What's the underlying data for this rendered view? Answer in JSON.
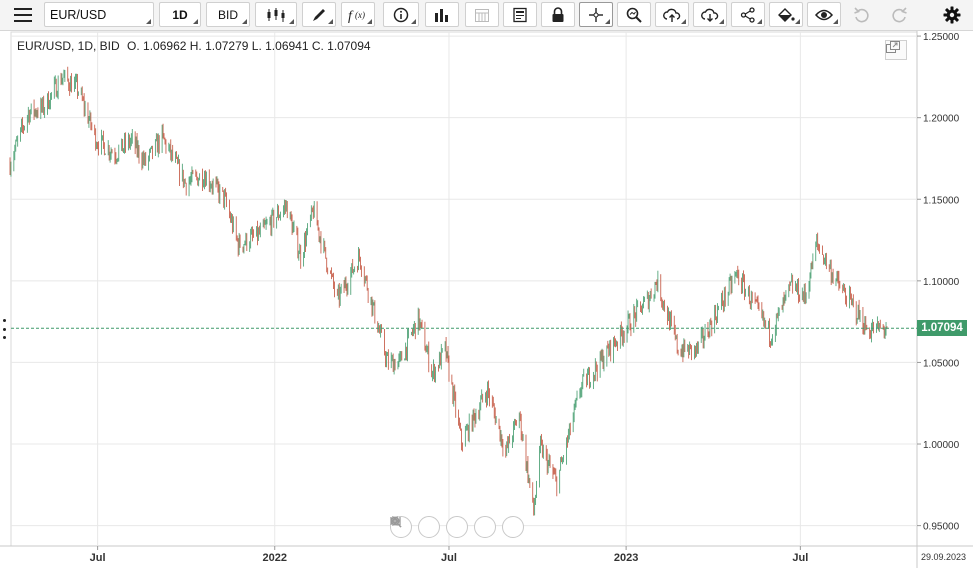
{
  "toolbar": {
    "symbol": "EUR/USD",
    "interval": "1D",
    "price_type": "BID",
    "icons": [
      "menu-icon",
      "candles-icon",
      "pencil-icon",
      "function-icon",
      "info-icon",
      "bars-icon",
      "calendar-icon",
      "report-icon",
      "lock-icon",
      "crosshair-icon",
      "zoom-icon",
      "cloud-upload-icon",
      "cloud-download-icon",
      "share-icon",
      "paint-icon",
      "eye-icon",
      "undo-icon",
      "redo-icon",
      "gear-icon"
    ]
  },
  "legend": {
    "instrument": "EUR/USD, 1D, BID",
    "ohlc": "O. 1.06962 H. 1.07279 L. 1.06941 C. 1.07094"
  },
  "colors": {
    "up": "#3f9a6a",
    "down": "#c2503a",
    "grid": "#e8e8e8",
    "last_price": "#3f9a6a"
  },
  "chart_data": {
    "type": "candlestick",
    "last_price": "1.07094",
    "y_axis": {
      "ticks": [
        "1.25000",
        "1.20000",
        "1.15000",
        "1.10000",
        "1.05000",
        "1.00000",
        "0.95000"
      ],
      "range": [
        0.9375,
        1.2525
      ]
    },
    "x_axis": {
      "ticks": [
        "Jul",
        "2022",
        "Jul",
        "2023",
        "Jul"
      ],
      "end_date": "29.09.2023"
    },
    "range": {
      "start": "2021-04-01",
      "end": "2023-09-29"
    },
    "path": [
      [
        "2021-04-01",
        1.172
      ],
      [
        "2021-04-20",
        1.203
      ],
      [
        "2021-05-06",
        1.206
      ],
      [
        "2021-05-25",
        1.225
      ],
      [
        "2021-06-10",
        1.218
      ],
      [
        "2021-06-30",
        1.186
      ],
      [
        "2021-07-20",
        1.178
      ],
      [
        "2021-08-05",
        1.186
      ],
      [
        "2021-08-20",
        1.172
      ],
      [
        "2021-09-06",
        1.188
      ],
      [
        "2021-09-30",
        1.16
      ],
      [
        "2021-10-20",
        1.165
      ],
      [
        "2021-11-10",
        1.15
      ],
      [
        "2021-11-24",
        1.122
      ],
      [
        "2021-12-15",
        1.128
      ],
      [
        "2022-01-13",
        1.146
      ],
      [
        "2022-01-28",
        1.115
      ],
      [
        "2022-02-10",
        1.143
      ],
      [
        "2022-03-07",
        1.088
      ],
      [
        "2022-03-30",
        1.115
      ],
      [
        "2022-04-28",
        1.05
      ],
      [
        "2022-05-11",
        1.05
      ],
      [
        "2022-05-30",
        1.077
      ],
      [
        "2022-06-14",
        1.043
      ],
      [
        "2022-06-27",
        1.058
      ],
      [
        "2022-07-14",
        1.001
      ],
      [
        "2022-08-10",
        1.033
      ],
      [
        "2022-08-29",
        0.995
      ],
      [
        "2022-09-12",
        1.018
      ],
      [
        "2022-09-27",
        0.958
      ],
      [
        "2022-10-04",
        0.998
      ],
      [
        "2022-10-21",
        0.976
      ],
      [
        "2022-11-15",
        1.035
      ],
      [
        "2022-12-01",
        1.047
      ],
      [
        "2022-12-30",
        1.07
      ],
      [
        "2023-01-25",
        1.09
      ],
      [
        "2023-02-02",
        1.1
      ],
      [
        "2023-02-24",
        1.058
      ],
      [
        "2023-03-15",
        1.057
      ],
      [
        "2023-04-26",
        1.104
      ],
      [
        "2023-05-31",
        1.067
      ],
      [
        "2023-06-22",
        1.097
      ],
      [
        "2023-07-06",
        1.09
      ],
      [
        "2023-07-18",
        1.123
      ],
      [
        "2023-08-10",
        1.097
      ],
      [
        "2023-09-01",
        1.078
      ],
      [
        "2023-09-08",
        1.07
      ],
      [
        "2023-09-29",
        1.0709
      ]
    ]
  },
  "nav_buttons": [
    "scroll-left-icon",
    "zoom-out-icon",
    "reset-icon",
    "zoom-in-icon",
    "scroll-right-icon"
  ]
}
